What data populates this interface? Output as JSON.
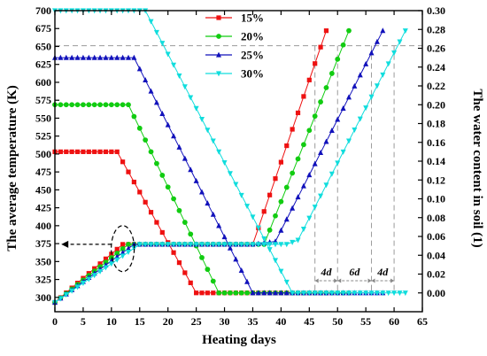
{
  "chart_data": {
    "type": "line",
    "xlabel": "Heating days",
    "ylabel_left": "The average temperature (K)",
    "ylabel_right": "The water content in soil (1)",
    "xlim": [
      0,
      65
    ],
    "ylim_left": [
      280,
      700
    ],
    "ylim_right": [
      -0.02,
      0.3
    ],
    "x_ticks": [
      "0",
      "5",
      "10",
      "15",
      "20",
      "25",
      "30",
      "35",
      "40",
      "45",
      "50",
      "55",
      "60",
      "65"
    ],
    "y_left_ticks": [
      "300",
      "325",
      "350",
      "375",
      "400",
      "425",
      "450",
      "475",
      "500",
      "525",
      "550",
      "575",
      "600",
      "625",
      "650",
      "675",
      "700"
    ],
    "y_right_ticks": [
      "0.00",
      "0.02",
      "0.04",
      "0.06",
      "0.08",
      "0.10",
      "0.12",
      "0.14",
      "0.16",
      "0.18",
      "0.20",
      "0.22",
      "0.24",
      "0.26",
      "0.28",
      "0.30"
    ],
    "legend_position": "top-center",
    "series": [
      {
        "name": "15%",
        "color": "#ee1111",
        "marker": "square",
        "temperature": {
          "points": [
            [
              0,
              293
            ],
            [
              12,
              374
            ],
            [
              25,
              374
            ],
            [
              35,
              374
            ],
            [
              48,
              672
            ]
          ]
        },
        "water_content": {
          "points": [
            [
              0,
              0.15
            ],
            [
              11,
              0.15
            ],
            [
              25,
              0.0
            ],
            [
              48,
              0.0
            ]
          ]
        }
      },
      {
        "name": "20%",
        "color": "#11cc11",
        "marker": "circle",
        "temperature": {
          "points": [
            [
              0,
              293
            ],
            [
              13,
              374
            ],
            [
              29,
              374
            ],
            [
              37,
              374
            ],
            [
              52,
              672
            ]
          ]
        },
        "water_content": {
          "points": [
            [
              0,
              0.2
            ],
            [
              13,
              0.2
            ],
            [
              29,
              0.0
            ],
            [
              52,
              0.0
            ]
          ]
        }
      },
      {
        "name": "25%",
        "color": "#1111bb",
        "marker": "triangle-up",
        "temperature": {
          "points": [
            [
              0,
              293
            ],
            [
              14,
              374
            ],
            [
              35,
              374
            ],
            [
              39,
              378
            ],
            [
              58,
              672
            ]
          ]
        },
        "water_content": {
          "points": [
            [
              0,
              0.25
            ],
            [
              14,
              0.25
            ],
            [
              35,
              0.0
            ],
            [
              58,
              0.0
            ]
          ]
        }
      },
      {
        "name": "30%",
        "color": "#11dddd",
        "marker": "triangle-down",
        "temperature": {
          "points": [
            [
              0,
              293
            ],
            [
              15,
              374
            ],
            [
              41,
              374
            ],
            [
              43,
              380
            ],
            [
              62,
              672
            ]
          ]
        },
        "water_content": {
          "points": [
            [
              0,
              0.3
            ],
            [
              16,
              0.3
            ],
            [
              42,
              0.0
            ],
            [
              62,
              0.0
            ]
          ]
        }
      }
    ],
    "reference_lines": {
      "horizontal_left_value": 651,
      "vertical_x": [
        46,
        50,
        56,
        60
      ]
    },
    "annotations": [
      {
        "text": "4d",
        "x_from": 46,
        "x_to": 50
      },
      {
        "text": "6d",
        "x_from": 50,
        "x_to": 56
      },
      {
        "text": "4d",
        "x_from": 56,
        "x_to": 60
      }
    ],
    "callout_arrow": {
      "from_x": 12,
      "to_x": 0.5,
      "y": 374
    }
  }
}
